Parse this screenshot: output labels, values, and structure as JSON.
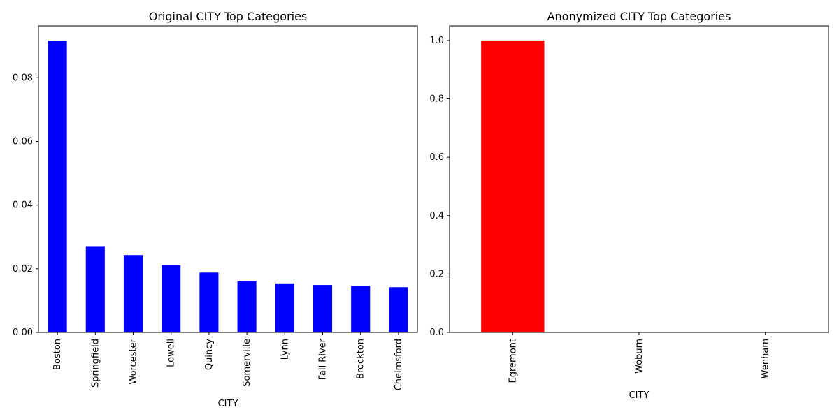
{
  "chart_data": [
    {
      "type": "bar",
      "title": "Original CITY Top Categories",
      "xlabel": "CITY",
      "ylabel": "",
      "categories": [
        "Boston",
        "Springfield",
        "Worcester",
        "Lowell",
        "Quincy",
        "Somerville",
        "Lynn",
        "Fall River",
        "Brockton",
        "Chelmsford"
      ],
      "values": [
        0.0917,
        0.0271,
        0.0243,
        0.0211,
        0.0188,
        0.016,
        0.0154,
        0.0149,
        0.0146,
        0.0142
      ],
      "ylim": [
        0,
        0.0963
      ],
      "yticks": [
        0.0,
        0.02,
        0.04,
        0.06,
        0.08
      ],
      "ytick_labels": [
        "0.00",
        "0.02",
        "0.04",
        "0.06",
        "0.08"
      ],
      "bar_color": "#0000ff",
      "grid": false,
      "legend": "none"
    },
    {
      "type": "bar",
      "title": "Anonymized CITY Top Categories",
      "xlabel": "CITY",
      "ylabel": "",
      "categories": [
        "Egremont",
        "Woburn",
        "Wenham"
      ],
      "values": [
        1.0,
        0.0,
        0.0
      ],
      "ylim": [
        0,
        1.05
      ],
      "yticks": [
        0.0,
        0.2,
        0.4,
        0.6,
        0.8,
        1.0
      ],
      "ytick_labels": [
        "0.0",
        "0.2",
        "0.4",
        "0.6",
        "0.8",
        "1.0"
      ],
      "bar_color": "#ff0000",
      "grid": false,
      "legend": "none"
    }
  ]
}
